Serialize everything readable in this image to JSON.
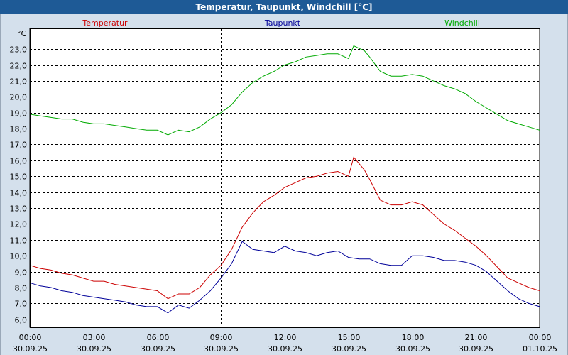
{
  "window": {
    "title": "Temperatur, Taupunkt, Windchill [°C]"
  },
  "chart_data": {
    "type": "line",
    "title": "Temperatur, Taupunkt, Windchill [°C]",
    "ylabel": "°C",
    "xlabel": "",
    "ylim": [
      5.5,
      24.3
    ],
    "xlim": [
      0,
      24
    ],
    "grid": true,
    "legend_position": "top",
    "y_ticks": [
      "6,0",
      "7,0",
      "8,0",
      "9,0",
      "10,0",
      "11,0",
      "12,0",
      "13,0",
      "14,0",
      "15,0",
      "16,0",
      "17,0",
      "18,0",
      "19,0",
      "20,0",
      "21,0",
      "22,0",
      "23,0"
    ],
    "y_tick_values": [
      6,
      7,
      8,
      9,
      10,
      11,
      12,
      13,
      14,
      15,
      16,
      17,
      18,
      19,
      20,
      21,
      22,
      23
    ],
    "x_ticks": [
      {
        "time": "00:00",
        "date": "30.09.25",
        "h": 0
      },
      {
        "time": "03:00",
        "date": "30.09.25",
        "h": 3
      },
      {
        "time": "06:00",
        "date": "30.09.25",
        "h": 6
      },
      {
        "time": "09:00",
        "date": "30.09.25",
        "h": 9
      },
      {
        "time": "12:00",
        "date": "30.09.25",
        "h": 12
      },
      {
        "time": "15:00",
        "date": "30.09.25",
        "h": 15
      },
      {
        "time": "18:00",
        "date": "30.09.25",
        "h": 18
      },
      {
        "time": "21:00",
        "date": "30.09.25",
        "h": 21
      },
      {
        "time": "00:00",
        "date": "01.10.25",
        "h": 24
      }
    ],
    "series": [
      {
        "name": "Temperatur",
        "color": "#cc0000",
        "x": [
          0,
          0.5,
          1,
          1.5,
          2,
          2.5,
          3,
          3.5,
          4,
          4.5,
          5,
          5.5,
          6,
          6.5,
          7,
          7.5,
          8,
          8.5,
          9,
          9.5,
          10,
          10.5,
          11,
          11.5,
          12,
          12.5,
          13,
          13.5,
          14,
          14.5,
          15,
          15.25,
          15.75,
          16,
          16.5,
          17,
          17.5,
          18,
          18.5,
          19,
          19.5,
          20,
          20.5,
          21,
          21.5,
          22,
          22.5,
          23,
          23.5,
          24
        ],
        "y": [
          9.4,
          9.2,
          9.1,
          8.9,
          8.8,
          8.6,
          8.4,
          8.4,
          8.2,
          8.1,
          8.0,
          7.9,
          7.8,
          7.3,
          7.6,
          7.6,
          8.0,
          8.8,
          9.4,
          10.4,
          11.8,
          12.7,
          13.4,
          13.8,
          14.3,
          14.6,
          14.9,
          15.0,
          15.2,
          15.3,
          15.0,
          16.2,
          15.4,
          14.8,
          13.5,
          13.2,
          13.2,
          13.4,
          13.2,
          12.6,
          12.0,
          11.6,
          11.1,
          10.6,
          10.0,
          9.3,
          8.6,
          8.3,
          8.0,
          7.8
        ]
      },
      {
        "name": "Taupunkt",
        "color": "#000099",
        "x": [
          0,
          0.5,
          1,
          1.5,
          2,
          2.5,
          3,
          3.5,
          4,
          4.5,
          5,
          5.5,
          6,
          6.5,
          7,
          7.5,
          8,
          8.5,
          9,
          9.5,
          10,
          10.5,
          11,
          11.5,
          12,
          12.5,
          13,
          13.5,
          14,
          14.5,
          15,
          15.5,
          16,
          16.5,
          17,
          17.5,
          18,
          18.5,
          19,
          19.5,
          20,
          20.5,
          21,
          21.5,
          22,
          22.5,
          23,
          23.5,
          24
        ],
        "y": [
          8.3,
          8.1,
          8.0,
          7.8,
          7.7,
          7.5,
          7.4,
          7.3,
          7.2,
          7.1,
          6.9,
          6.8,
          6.8,
          6.4,
          6.9,
          6.7,
          7.2,
          7.8,
          8.6,
          9.5,
          10.9,
          10.4,
          10.3,
          10.2,
          10.6,
          10.3,
          10.2,
          10.0,
          10.2,
          10.3,
          9.9,
          9.8,
          9.8,
          9.5,
          9.4,
          9.4,
          10.0,
          10.0,
          9.9,
          9.7,
          9.7,
          9.6,
          9.4,
          9.0,
          8.4,
          7.8,
          7.3,
          7.0,
          6.8
        ]
      },
      {
        "name": "Windchill",
        "color": "#00aa00",
        "x": [
          0,
          0.5,
          1,
          1.5,
          2,
          2.5,
          3,
          3.5,
          4,
          4.5,
          5,
          5.5,
          6,
          6.5,
          7,
          7.5,
          8,
          8.5,
          9,
          9.5,
          10,
          10.5,
          11,
          11.5,
          12,
          12.5,
          13,
          13.5,
          14,
          14.5,
          15,
          15.25,
          15.75,
          16,
          16.5,
          17,
          17.5,
          18,
          18.5,
          19,
          19.5,
          20,
          20.5,
          21,
          21.5,
          22,
          22.5,
          23,
          23.5,
          24
        ],
        "y": [
          18.9,
          18.8,
          18.7,
          18.6,
          18.6,
          18.4,
          18.3,
          18.3,
          18.2,
          18.1,
          18.0,
          17.9,
          17.9,
          17.6,
          17.9,
          17.8,
          18.1,
          18.6,
          19.0,
          19.5,
          20.3,
          20.9,
          21.3,
          21.6,
          22.0,
          22.2,
          22.5,
          22.6,
          22.7,
          22.7,
          22.4,
          23.2,
          22.9,
          22.5,
          21.6,
          21.3,
          21.3,
          21.4,
          21.3,
          21.0,
          20.7,
          20.5,
          20.2,
          19.7,
          19.3,
          18.9,
          18.5,
          18.3,
          18.1,
          17.9
        ]
      }
    ]
  }
}
